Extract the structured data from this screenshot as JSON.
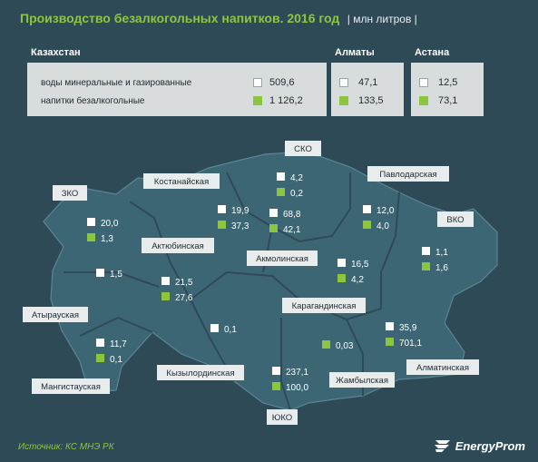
{
  "header": {
    "title": "Производство безалкогольных напитков. 2016 год",
    "unit": "| млн литров |"
  },
  "legend": {
    "white_color": "#ffffff",
    "green_color": "#8cc63f"
  },
  "summary": {
    "kazakhstan": {
      "title": "Казахстан",
      "rows": [
        {
          "label": "воды минеральные и газированные",
          "value": "509,6"
        },
        {
          "label": "напитки безалкогольные",
          "value": "1 126,2"
        }
      ]
    },
    "almaty": {
      "title": "Алматы",
      "water": "47,1",
      "soft": "133,5"
    },
    "astana": {
      "title": "Астана",
      "water": "12,5",
      "soft": "73,1"
    }
  },
  "chart_data": {
    "type": "map",
    "title": "Производство безалкогольных напитков. 2016 год",
    "unit": "| млн литров |",
    "series": [
      {
        "name": "воды минеральные и газированные",
        "color": "#ffffff"
      },
      {
        "name": "напитки безалкогольные",
        "color": "#8cc63f"
      }
    ],
    "regions": [
      {
        "name": "СКО",
        "water": "4,2",
        "soft": "0,2"
      },
      {
        "name": "Павлодарская",
        "water": "12,0",
        "soft": "4,0"
      },
      {
        "name": "Костанайская",
        "water": "19,9",
        "soft": "37,3"
      },
      {
        "name": "Акмолинская",
        "water": "68,8",
        "soft": "42,1"
      },
      {
        "name": "ЗКО",
        "water": "20,0",
        "soft": "1,3"
      },
      {
        "name": "ВКО",
        "water": "1,1",
        "soft": "1,6"
      },
      {
        "name": "Атырауская",
        "water": "1,5",
        "soft": null
      },
      {
        "name": "Актюбинская",
        "water": "21,5",
        "soft": "27,6"
      },
      {
        "name": "Карагандинская",
        "water": "16,5",
        "soft": "4,2"
      },
      {
        "name": "Мангистауская",
        "water": "11,7",
        "soft": "0,1"
      },
      {
        "name": "Кызылординская",
        "water": "0,1",
        "soft": null
      },
      {
        "name": "Алматинская",
        "water": "35,9",
        "soft": "701,1"
      },
      {
        "name": "Жамбылская",
        "water": null,
        "soft": "0,03"
      },
      {
        "name": "ЮКО",
        "water": "237,1",
        "soft": "100,0"
      }
    ]
  },
  "footer": {
    "source": "Источник: КС МНЭ РК",
    "brand": "EnergyProm"
  }
}
